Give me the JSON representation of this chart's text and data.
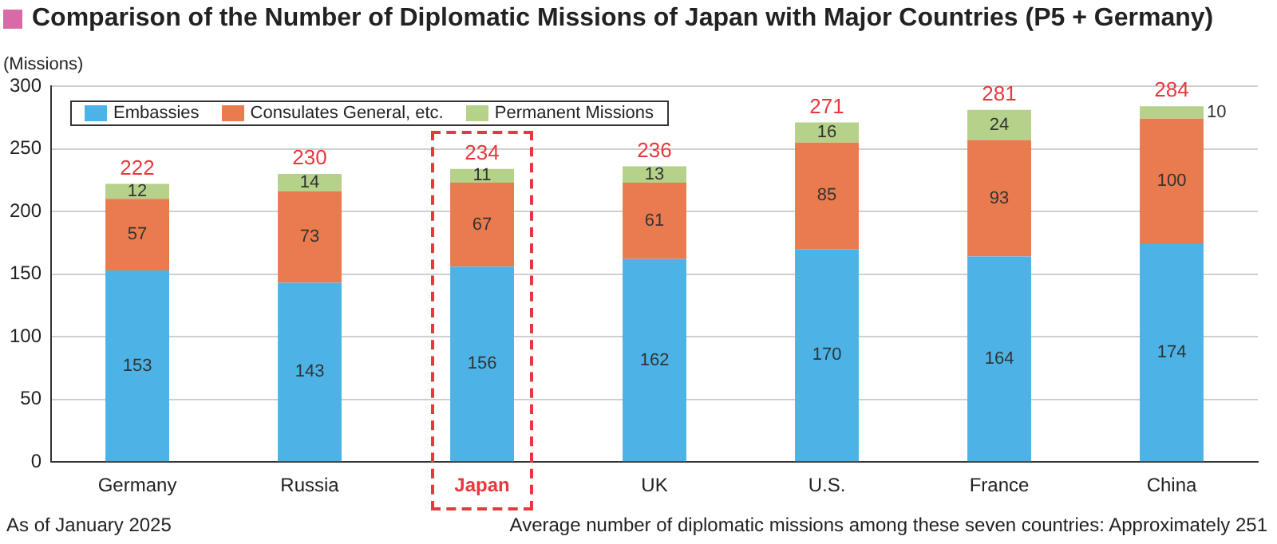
{
  "chart_data": {
    "type": "bar",
    "title": "Comparison of the Number of Diplomatic Missions of Japan with Major Countries (P5 + Germany)",
    "ylabel": "(Missions)",
    "categories": [
      "Germany",
      "Russia",
      "Japan",
      "UK",
      "U.S.",
      "France",
      "China"
    ],
    "series": [
      {
        "name": "Embassies",
        "color": "#4db3e6",
        "values": [
          153,
          143,
          156,
          162,
          170,
          164,
          174
        ]
      },
      {
        "name": "Consulates General, etc.",
        "color": "#e97b4f",
        "values": [
          57,
          73,
          67,
          61,
          85,
          93,
          100
        ]
      },
      {
        "name": "Permanent Missions",
        "color": "#b5d18a",
        "values": [
          12,
          14,
          11,
          13,
          16,
          24,
          10
        ]
      }
    ],
    "stacked": true,
    "ylim": [
      0,
      300
    ],
    "yticks": [
      0,
      50,
      100,
      150,
      200,
      250,
      300
    ],
    "grid": "y",
    "legend": "top left",
    "data_labels": true,
    "totals": [
      "222",
      "230",
      "234",
      "236",
      "271",
      "281",
      "284"
    ],
    "annotations": [
      "As of January 2025",
      "Average number of diplomatic missions among these seven countries: Approximately 251"
    ]
  }
}
